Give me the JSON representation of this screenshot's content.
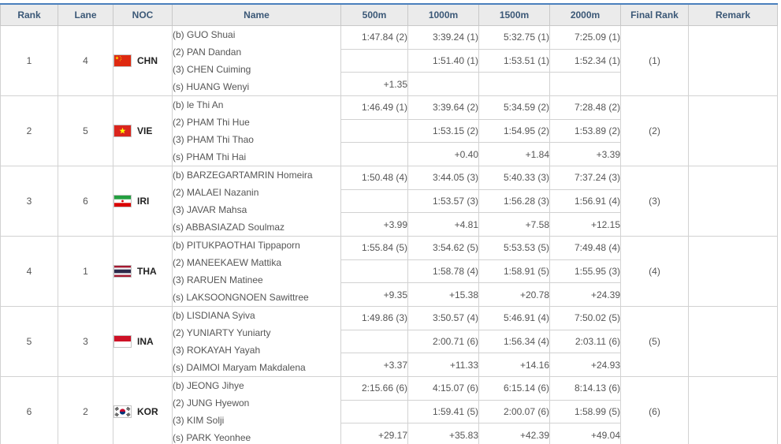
{
  "table": {
    "columns": [
      {
        "label": "Rank"
      },
      {
        "label": "Lane"
      },
      {
        "label": "NOC"
      },
      {
        "label": "Name"
      },
      {
        "label": "500m"
      },
      {
        "label": "1000m"
      },
      {
        "label": "1500m"
      },
      {
        "label": "2000m"
      },
      {
        "label": "Final Rank"
      },
      {
        "label": "Remark"
      }
    ],
    "teams": [
      {
        "rank": "1",
        "lane": "4",
        "noc": "CHN",
        "flag": "chn",
        "athletes": [
          "(b) GUO Shuai",
          "(2) PAN Dandan",
          "(3) CHEN Cuiming",
          "(s) HUANG Wenyi"
        ],
        "splits": {
          "row1": [
            "1:47.84 (2)",
            "3:39.24 (1)",
            "5:32.75 (1)",
            "7:25.09 (1)"
          ],
          "row2": [
            "",
            "1:51.40 (1)",
            "1:53.51 (1)",
            "1:52.34 (1)"
          ],
          "row3": [
            "+1.35",
            "",
            "",
            ""
          ]
        },
        "final_rank": "(1)",
        "remark": ""
      },
      {
        "rank": "2",
        "lane": "5",
        "noc": "VIE",
        "flag": "vie",
        "athletes": [
          "(b) le Thi An",
          "(2) PHAM Thi Hue",
          "(3) PHAM Thi Thao",
          "(s) PHAM Thi Hai"
        ],
        "splits": {
          "row1": [
            "1:46.49 (1)",
            "3:39.64 (2)",
            "5:34.59 (2)",
            "7:28.48 (2)"
          ],
          "row2": [
            "",
            "1:53.15 (2)",
            "1:54.95 (2)",
            "1:53.89 (2)"
          ],
          "row3": [
            "",
            "+0.40",
            "+1.84",
            "+3.39"
          ]
        },
        "final_rank": "(2)",
        "remark": ""
      },
      {
        "rank": "3",
        "lane": "6",
        "noc": "IRI",
        "flag": "iri",
        "athletes": [
          "(b) BARZEGARTAMRIN Homeira",
          "(2) MALAEI Nazanin",
          "(3) JAVAR Mahsa",
          "(s) ABBASIAZAD Soulmaz"
        ],
        "splits": {
          "row1": [
            "1:50.48 (4)",
            "3:44.05 (3)",
            "5:40.33 (3)",
            "7:37.24 (3)"
          ],
          "row2": [
            "",
            "1:53.57 (3)",
            "1:56.28 (3)",
            "1:56.91 (4)"
          ],
          "row3": [
            "+3.99",
            "+4.81",
            "+7.58",
            "+12.15"
          ]
        },
        "final_rank": "(3)",
        "remark": ""
      },
      {
        "rank": "4",
        "lane": "1",
        "noc": "THA",
        "flag": "tha",
        "athletes": [
          "(b) PITUKPAOTHAI Tippaporn",
          "(2) MANEEKAEW Mattika",
          "(3) RARUEN Matinee",
          "(s) LAKSOONGNOEN Sawittree"
        ],
        "splits": {
          "row1": [
            "1:55.84 (5)",
            "3:54.62 (5)",
            "5:53.53 (5)",
            "7:49.48 (4)"
          ],
          "row2": [
            "",
            "1:58.78 (4)",
            "1:58.91 (5)",
            "1:55.95 (3)"
          ],
          "row3": [
            "+9.35",
            "+15.38",
            "+20.78",
            "+24.39"
          ]
        },
        "final_rank": "(4)",
        "remark": ""
      },
      {
        "rank": "5",
        "lane": "3",
        "noc": "INA",
        "flag": "ina",
        "athletes": [
          "(b) LISDIANA Syiva",
          "(2) YUNIARTY Yuniarty",
          "(3) ROKAYAH Yayah",
          "(s) DAIMOI Maryam Makdalena"
        ],
        "splits": {
          "row1": [
            "1:49.86 (3)",
            "3:50.57 (4)",
            "5:46.91 (4)",
            "7:50.02 (5)"
          ],
          "row2": [
            "",
            "2:00.71 (6)",
            "1:56.34 (4)",
            "2:03.11 (6)"
          ],
          "row3": [
            "+3.37",
            "+11.33",
            "+14.16",
            "+24.93"
          ]
        },
        "final_rank": "(5)",
        "remark": ""
      },
      {
        "rank": "6",
        "lane": "2",
        "noc": "KOR",
        "flag": "kor",
        "athletes": [
          "(b) JEONG Jihye",
          "(2) JUNG Hyewon",
          "(3) KIM Solji",
          "(s) PARK Yeonhee"
        ],
        "splits": {
          "row1": [
            "2:15.66 (6)",
            "4:15.07 (6)",
            "6:15.14 (6)",
            "8:14.13 (6)"
          ],
          "row2": [
            "",
            "1:59.41 (5)",
            "2:00.07 (6)",
            "1:58.99 (5)"
          ],
          "row3": [
            "+29.17",
            "+35.83",
            "+42.39",
            "+49.04"
          ]
        },
        "final_rank": "(6)",
        "remark": ""
      }
    ]
  },
  "colors": {
    "accent_top_border": "#4a80bd",
    "header_background": "#ebebeb",
    "header_text": "#3b5877",
    "body_text": "#555555",
    "grid_line": "#d2d2d2"
  }
}
